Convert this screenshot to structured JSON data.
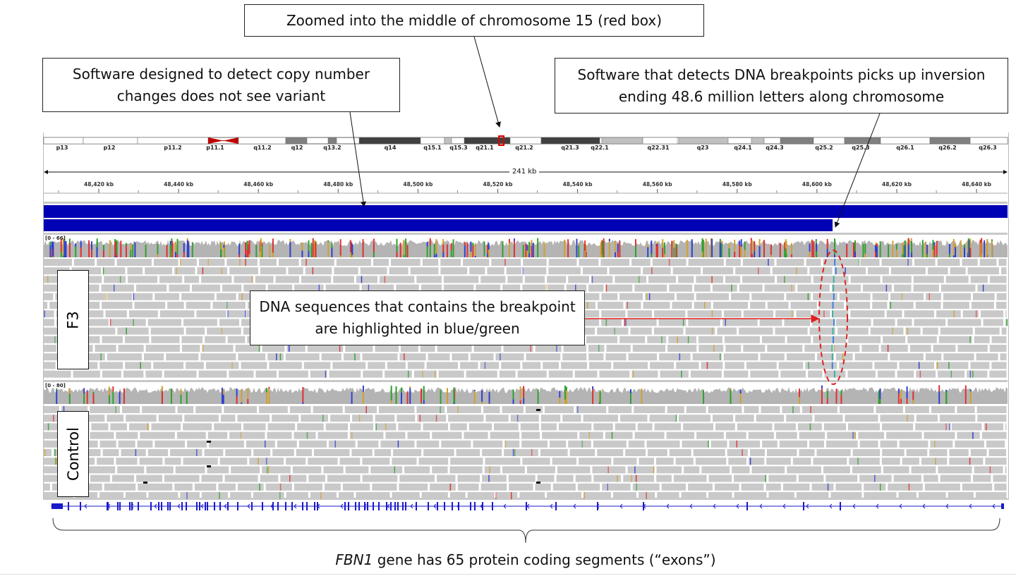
{
  "annotations": {
    "zoom_note": "Zoomed into the middle of chromosome 15 (red box)",
    "cnv_note": "Software designed to detect copy number changes does not see variant",
    "breakpoint_note": "Software that detects DNA breakpoints picks up inversion ending 48.6 million letters along chromosome",
    "reads_note": "DNA sequences that contains the breakpoint are highlighted in blue/green",
    "caption_gene": "FBN1",
    "caption_rest": " gene has 65 protein coding segments (“exons”)"
  },
  "ideogram": {
    "chromosome": "15",
    "bands": [
      {
        "name": "p13",
        "stain": "gneg"
      },
      {
        "name": "p12",
        "stain": "gneg"
      },
      {
        "name": "p11.2",
        "stain": "gneg"
      },
      {
        "name": "p11.1",
        "stain": "acen"
      },
      {
        "name": "q11.2",
        "stain": "gneg"
      },
      {
        "name": "q12",
        "stain": "gpos50"
      },
      {
        "name": "q13.2",
        "stain": "gpos50"
      },
      {
        "name": "q14",
        "stain": "gpos75"
      },
      {
        "name": "q15.1",
        "stain": "gneg"
      },
      {
        "name": "q15.3",
        "stain": "gpos25"
      },
      {
        "name": "q21.1",
        "stain": "gpos75"
      },
      {
        "name": "q21.2",
        "stain": "gneg"
      },
      {
        "name": "q21.3",
        "stain": "gpos75"
      },
      {
        "name": "q22.1",
        "stain": "gpos25"
      },
      {
        "name": "q22.31",
        "stain": "gneg"
      },
      {
        "name": "q23",
        "stain": "gpos25"
      },
      {
        "name": "q24.1",
        "stain": "gpos25"
      },
      {
        "name": "q24.3",
        "stain": "gpos50"
      },
      {
        "name": "q25.2",
        "stain": "gneg"
      },
      {
        "name": "q25.3",
        "stain": "gpos50"
      },
      {
        "name": "q26.1",
        "stain": "gneg"
      },
      {
        "name": "q26.2",
        "stain": "gpos50"
      },
      {
        "name": "q26.3",
        "stain": "gneg"
      }
    ]
  },
  "ruler": {
    "span": "241 kb",
    "ticks": [
      "48,420 kb",
      "48,440 kb",
      "48,460 kb",
      "48,480 kb",
      "48,500 kb",
      "48,520 kb",
      "48,540 kb",
      "48,560 kb",
      "48,580 kb",
      "48,600 kb",
      "48,620 kb",
      "48,640 kb"
    ]
  },
  "tracks": {
    "f3": {
      "label": "F3",
      "coverage_range": "[0 - 66]"
    },
    "control": {
      "label": "Control",
      "coverage_range": "[0 - 80]"
    }
  },
  "colors": {
    "segment_blue": "#0000b4",
    "gene_blue": "#1a1acc",
    "highlight_red": "#e02020",
    "read_gray": "#c9c9c9",
    "coverage_gray": "#b4b4b4"
  }
}
